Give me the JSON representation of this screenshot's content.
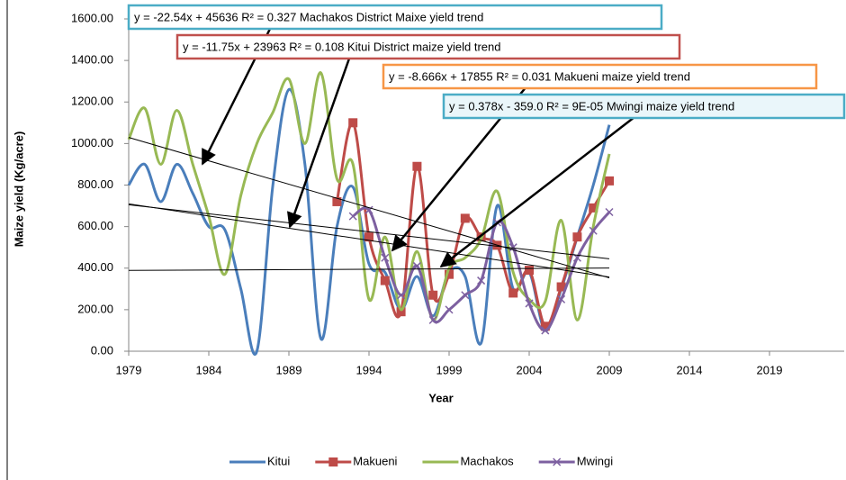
{
  "chart_data": {
    "type": "line",
    "x_label": "Year",
    "y_label": "Maize yield (Kg/acre)",
    "x": [
      1979,
      1980,
      1981,
      1982,
      1983,
      1984,
      1985,
      1986,
      1987,
      1988,
      1989,
      1990,
      1991,
      1992,
      1993,
      1994,
      1995,
      1996,
      1997,
      1998,
      1999,
      2000,
      2001,
      2002,
      2003,
      2004,
      2005,
      2006,
      2007,
      2008,
      2009
    ],
    "xlim": [
      1979,
      2024
    ],
    "xticks": [
      1979,
      1984,
      1989,
      1994,
      1999,
      2004,
      2009,
      2014,
      2019
    ],
    "ylim": [
      0,
      1600
    ],
    "yticks": [
      {
        "value": 0,
        "label": "0.00"
      },
      {
        "value": 200,
        "label": "200.00"
      },
      {
        "value": 400,
        "label": "400.00"
      },
      {
        "value": 600,
        "label": "600.00"
      },
      {
        "value": 800,
        "label": "800.00"
      },
      {
        "value": 1000,
        "label": "1000.00"
      },
      {
        "value": 1200,
        "label": "1200.00"
      },
      {
        "value": 1400,
        "label": "1400.00"
      },
      {
        "value": 1600,
        "label": "1600.00"
      }
    ],
    "legend": "bottom",
    "series": [
      {
        "name": "Kitui",
        "color": "#4a7ebb",
        "marker": null,
        "values": [
          800,
          900,
          720,
          900,
          760,
          600,
          585,
          300,
          0,
          800,
          1260,
          900,
          60,
          600,
          790,
          420,
          380,
          200,
          360,
          170,
          380,
          360,
          40,
          700,
          300,
          380,
          100,
          300,
          550,
          800,
          1090
        ]
      },
      {
        "name": "Makueni",
        "color": "#be4b48",
        "marker": "square",
        "values": [
          null,
          null,
          null,
          null,
          null,
          null,
          null,
          null,
          null,
          null,
          null,
          null,
          null,
          720,
          1100,
          550,
          340,
          190,
          890,
          270,
          370,
          640,
          550,
          510,
          280,
          390,
          120,
          310,
          550,
          690,
          820
        ]
      },
      {
        "name": "Machakos",
        "color": "#98b954",
        "marker": null,
        "values": [
          1020,
          1170,
          900,
          1160,
          900,
          650,
          370,
          750,
          1000,
          1150,
          1310,
          1000,
          1340,
          830,
          900,
          250,
          550,
          200,
          480,
          150,
          400,
          450,
          540,
          770,
          380,
          250,
          240,
          630,
          150,
          600,
          950
        ]
      },
      {
        "name": "Mwingi",
        "color": "#7d60a0",
        "marker": "x",
        "values": [
          null,
          null,
          null,
          null,
          null,
          null,
          null,
          null,
          null,
          null,
          null,
          null,
          null,
          null,
          650,
          680,
          450,
          270,
          410,
          150,
          200,
          270,
          340,
          620,
          500,
          230,
          100,
          250,
          450,
          580,
          670
        ]
      }
    ],
    "trendlines": [
      {
        "label": "y = -22.54x + 45636  R² = 0.327 Machakos District Maixe yield trend",
        "slope": -22.54,
        "intercept": 45636,
        "color": "#4bacc6"
      },
      {
        "label": "y = -11.75x + 23963  R² = 0.108 Kitui District maize yield trend",
        "slope": -11.75,
        "intercept": 23963,
        "color": "#c0504d"
      },
      {
        "label": "y = -8.666x + 17855 R² = 0.031 Makueni maize yield trend",
        "slope": -8.666,
        "intercept": 17855,
        "color": "#f79646"
      },
      {
        "label": "y = 0.378x - 359.0  R² = 9E-05 Mwingi maize yield trend",
        "slope": 0.378,
        "intercept": -359.0,
        "color": "#4bacc6"
      }
    ]
  }
}
